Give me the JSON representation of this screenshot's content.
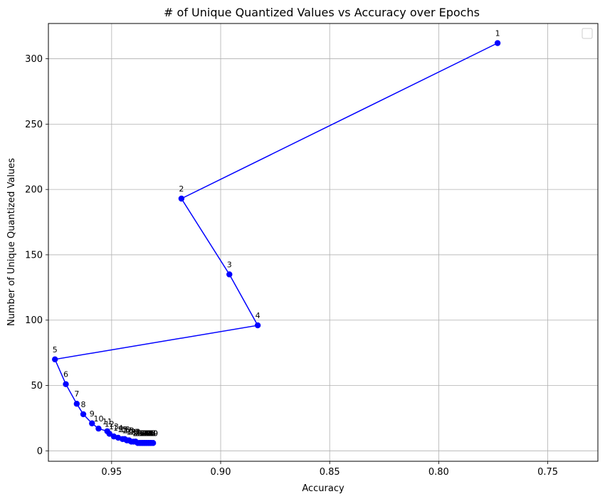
{
  "chart_data": {
    "type": "line",
    "title": "# of Unique Quantized Values vs Accuracy over Epochs",
    "xlabel": "Accuracy",
    "ylabel": "Number of Unique Quantized Values",
    "x_axis_inverted": true,
    "xlim": [
      0.979,
      0.727
    ],
    "ylim": [
      -8,
      327
    ],
    "xticks": [
      0.95,
      0.9,
      0.85,
      0.8,
      0.75
    ],
    "xtick_labels": [
      "0.95",
      "0.90",
      "0.85",
      "0.80",
      "0.75"
    ],
    "yticks": [
      0,
      50,
      100,
      150,
      200,
      250,
      300
    ],
    "ytick_labels": [
      "0",
      "50",
      "100",
      "150",
      "200",
      "250",
      "300"
    ],
    "grid": true,
    "legend": "top-right (empty)",
    "line_color": "#0000ff",
    "series": [
      {
        "epochs": [
          1,
          2,
          3,
          4,
          5,
          6,
          7,
          8,
          9,
          10,
          11,
          12,
          13,
          14,
          15,
          16,
          17,
          18,
          19,
          20,
          21,
          22,
          23,
          24,
          25,
          26,
          27,
          28,
          29,
          30,
          31,
          32,
          33,
          34,
          35,
          36,
          37,
          38,
          39,
          40,
          41,
          42,
          43,
          44,
          45,
          46,
          47,
          48,
          49,
          50
        ],
        "x": [
          0.773,
          0.918,
          0.896,
          0.883,
          0.976,
          0.971,
          0.966,
          0.963,
          0.959,
          0.956,
          0.952,
          0.951,
          0.949,
          0.947,
          0.945,
          0.944,
          0.943,
          0.942,
          0.941,
          0.94,
          0.939,
          0.939,
          0.938,
          0.938,
          0.937,
          0.937,
          0.937,
          0.936,
          0.936,
          0.936,
          0.936,
          0.935,
          0.935,
          0.935,
          0.935,
          0.935,
          0.934,
          0.934,
          0.934,
          0.934,
          0.933,
          0.933,
          0.933,
          0.933,
          0.932,
          0.932,
          0.932,
          0.932,
          0.931,
          0.931
        ],
        "y": [
          312,
          193,
          135,
          96,
          70,
          51,
          36,
          28,
          21,
          17,
          15,
          13,
          11,
          10,
          9,
          9,
          8,
          8,
          7,
          7,
          7,
          7,
          6,
          6,
          6,
          6,
          6,
          6,
          6,
          6,
          6,
          6,
          6,
          6,
          6,
          6,
          6,
          6,
          6,
          6,
          6,
          6,
          6,
          6,
          6,
          6,
          6,
          6,
          6,
          6
        ]
      }
    ],
    "point_labels": [
      "1",
      "2",
      "3",
      "4",
      "5",
      "6",
      "7",
      "8",
      "9",
      "10",
      "11",
      "12",
      "13",
      "14",
      "15",
      "16",
      "17",
      "18",
      "19",
      "20",
      "21",
      "22",
      "23",
      "24",
      "25",
      "26",
      "27",
      "28",
      "29",
      "30",
      "31",
      "32",
      "33",
      "34",
      "35",
      "36",
      "37",
      "38",
      "39",
      "40",
      "41",
      "42",
      "43",
      "44",
      "45",
      "46",
      "47",
      "48",
      "49",
      "50"
    ]
  }
}
